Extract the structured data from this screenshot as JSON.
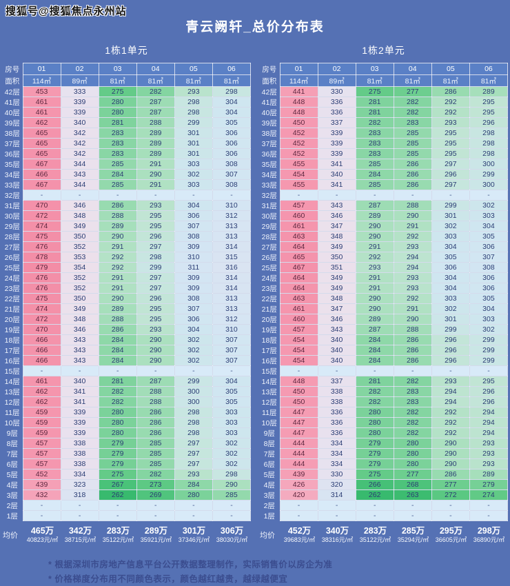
{
  "watermark": "搜狐号@搜狐焦点永州站",
  "title": "青云阙轩_总价分布表",
  "labels": {
    "room": "房号",
    "area": "面积",
    "avg": "均价",
    "empty_cell": "-"
  },
  "notes": [
    "* 根据深圳市房地产信息平台公开数据整理制作，实际销售价以房企为准",
    "* 价格梯度分布用不同颜色表示，颜色越红越贵，越绿越便宜"
  ],
  "colors": {
    "page_bg": "#5571b4",
    "header_cell_bg": "#5a80c6",
    "empty_cell_bg": "#d8eaf8",
    "empty_cell_text": "#44598f",
    "value_text": "#2b3d74",
    "pink_value_text": "#5e2840",
    "gradient_note": "green=cheap, pink=expensive",
    "gradient_stops": [
      [
        262,
        "#38ba6e"
      ],
      [
        268,
        "#4dc37b"
      ],
      [
        275,
        "#64cb88"
      ],
      [
        281,
        "#7fd39d"
      ],
      [
        286,
        "#98dbb0"
      ],
      [
        291,
        "#b0e1c3"
      ],
      [
        295,
        "#c1e5d4"
      ],
      [
        299,
        "#cae6e5"
      ],
      [
        304,
        "#cfe6f0"
      ],
      [
        310,
        "#d4e5f3"
      ],
      [
        317,
        "#dbe4f2"
      ],
      [
        327,
        "#e5e2f0"
      ],
      [
        342,
        "#eae1ed"
      ],
      [
        356,
        "#ece0eb"
      ],
      [
        416,
        "#f4aec1"
      ],
      [
        432,
        "#f5a3b9"
      ],
      [
        456,
        "#f597af"
      ],
      [
        480,
        "#f38da6"
      ]
    ]
  },
  "chart_data": [
    {
      "type": "heatmap",
      "title": "1栋1单元",
      "unit_of_values": "万 (total price)",
      "columns": [
        "01",
        "02",
        "03",
        "04",
        "05",
        "06"
      ],
      "areas": [
        "114㎡",
        "89㎡",
        "81㎡",
        "81㎡",
        "81㎡",
        "81㎡"
      ],
      "rows": [
        {
          "floor": "42层",
          "values": [
            453,
            333,
            275,
            282,
            293,
            298
          ]
        },
        {
          "floor": "41层",
          "values": [
            461,
            339,
            280,
            287,
            298,
            304
          ]
        },
        {
          "floor": "40层",
          "values": [
            461,
            339,
            280,
            287,
            298,
            304
          ]
        },
        {
          "floor": "39层",
          "values": [
            462,
            340,
            281,
            288,
            299,
            305
          ]
        },
        {
          "floor": "38层",
          "values": [
            465,
            342,
            283,
            289,
            301,
            306
          ]
        },
        {
          "floor": "37层",
          "values": [
            465,
            342,
            283,
            289,
            301,
            306
          ]
        },
        {
          "floor": "36层",
          "values": [
            465,
            342,
            283,
            289,
            301,
            306
          ]
        },
        {
          "floor": "35层",
          "values": [
            467,
            344,
            285,
            291,
            303,
            308
          ]
        },
        {
          "floor": "34层",
          "values": [
            466,
            343,
            284,
            290,
            302,
            307
          ]
        },
        {
          "floor": "33层",
          "values": [
            467,
            344,
            285,
            291,
            303,
            308
          ]
        },
        {
          "floor": "32层",
          "values": [
            null,
            null,
            null,
            null,
            null,
            null
          ]
        },
        {
          "floor": "31层",
          "values": [
            470,
            346,
            286,
            293,
            304,
            310
          ]
        },
        {
          "floor": "30层",
          "values": [
            472,
            348,
            288,
            295,
            306,
            312
          ]
        },
        {
          "floor": "29层",
          "values": [
            474,
            349,
            289,
            295,
            307,
            313
          ]
        },
        {
          "floor": "28层",
          "values": [
            475,
            350,
            290,
            296,
            308,
            313
          ]
        },
        {
          "floor": "27层",
          "values": [
            476,
            352,
            291,
            297,
            309,
            314
          ]
        },
        {
          "floor": "26层",
          "values": [
            478,
            353,
            292,
            298,
            310,
            315
          ]
        },
        {
          "floor": "25层",
          "values": [
            479,
            354,
            292,
            299,
            311,
            316
          ]
        },
        {
          "floor": "24层",
          "values": [
            476,
            352,
            291,
            297,
            309,
            314
          ]
        },
        {
          "floor": "23层",
          "values": [
            476,
            352,
            291,
            297,
            309,
            314
          ]
        },
        {
          "floor": "22层",
          "values": [
            475,
            350,
            290,
            296,
            308,
            313
          ]
        },
        {
          "floor": "21层",
          "values": [
            474,
            349,
            289,
            295,
            307,
            313
          ]
        },
        {
          "floor": "20层",
          "values": [
            472,
            348,
            288,
            295,
            306,
            312
          ]
        },
        {
          "floor": "19层",
          "values": [
            470,
            346,
            286,
            293,
            304,
            310
          ]
        },
        {
          "floor": "18层",
          "values": [
            466,
            343,
            284,
            290,
            302,
            307
          ]
        },
        {
          "floor": "17层",
          "values": [
            466,
            343,
            284,
            290,
            302,
            307
          ]
        },
        {
          "floor": "16层",
          "values": [
            466,
            343,
            284,
            290,
            302,
            307
          ]
        },
        {
          "floor": "15层",
          "values": [
            null,
            null,
            null,
            null,
            null,
            null
          ]
        },
        {
          "floor": "14层",
          "values": [
            461,
            340,
            281,
            287,
            299,
            304
          ]
        },
        {
          "floor": "13层",
          "values": [
            462,
            341,
            282,
            288,
            300,
            305
          ]
        },
        {
          "floor": "12层",
          "values": [
            462,
            341,
            282,
            288,
            300,
            305
          ]
        },
        {
          "floor": "11层",
          "values": [
            459,
            339,
            280,
            286,
            298,
            303
          ]
        },
        {
          "floor": "10层",
          "values": [
            459,
            339,
            280,
            286,
            298,
            303
          ]
        },
        {
          "floor": "9层",
          "values": [
            459,
            339,
            280,
            286,
            298,
            303
          ]
        },
        {
          "floor": "8层",
          "values": [
            457,
            338,
            279,
            285,
            297,
            302
          ]
        },
        {
          "floor": "7层",
          "values": [
            457,
            338,
            279,
            285,
            297,
            302
          ]
        },
        {
          "floor": "6层",
          "values": [
            457,
            338,
            279,
            285,
            297,
            302
          ]
        },
        {
          "floor": "5层",
          "values": [
            452,
            334,
            275,
            282,
            293,
            298
          ]
        },
        {
          "floor": "4层",
          "values": [
            439,
            323,
            267,
            273,
            284,
            290
          ]
        },
        {
          "floor": "3层",
          "values": [
            432,
            318,
            262,
            269,
            280,
            285
          ]
        },
        {
          "floor": "2层",
          "values": [
            null,
            null,
            null,
            null,
            null,
            null
          ]
        },
        {
          "floor": "1层",
          "values": [
            null,
            null,
            null,
            null,
            null,
            null
          ]
        }
      ],
      "avg_wan": [
        "465万",
        "342万",
        "283万",
        "289万",
        "301万",
        "306万"
      ],
      "avg_sqm": [
        "40823元/㎡",
        "38715元/㎡",
        "35122元/㎡",
        "35921元/㎡",
        "37346元/㎡",
        "38030元/㎡"
      ]
    },
    {
      "type": "heatmap",
      "title": "1栋2单元",
      "unit_of_values": "万 (total price)",
      "columns": [
        "01",
        "02",
        "03",
        "04",
        "05",
        "06"
      ],
      "areas": [
        "114㎡",
        "89㎡",
        "81㎡",
        "81㎡",
        "81㎡",
        "81㎡"
      ],
      "rows": [
        {
          "floor": "42层",
          "values": [
            441,
            330,
            275,
            277,
            286,
            289
          ]
        },
        {
          "floor": "41层",
          "values": [
            448,
            336,
            281,
            282,
            292,
            295
          ]
        },
        {
          "floor": "40层",
          "values": [
            448,
            336,
            281,
            282,
            292,
            295
          ]
        },
        {
          "floor": "39层",
          "values": [
            450,
            337,
            282,
            283,
            293,
            296
          ]
        },
        {
          "floor": "38层",
          "values": [
            452,
            339,
            283,
            285,
            295,
            298
          ]
        },
        {
          "floor": "37层",
          "values": [
            452,
            339,
            283,
            285,
            295,
            298
          ]
        },
        {
          "floor": "36层",
          "values": [
            452,
            339,
            283,
            285,
            295,
            298
          ]
        },
        {
          "floor": "35层",
          "values": [
            455,
            341,
            285,
            286,
            297,
            300
          ]
        },
        {
          "floor": "34层",
          "values": [
            454,
            340,
            284,
            286,
            296,
            299
          ]
        },
        {
          "floor": "33层",
          "values": [
            455,
            341,
            285,
            286,
            297,
            300
          ]
        },
        {
          "floor": "32层",
          "values": [
            null,
            null,
            null,
            null,
            null,
            null
          ]
        },
        {
          "floor": "31层",
          "values": [
            457,
            343,
            287,
            288,
            299,
            302
          ]
        },
        {
          "floor": "30层",
          "values": [
            460,
            346,
            289,
            290,
            301,
            303
          ]
        },
        {
          "floor": "29层",
          "values": [
            461,
            347,
            290,
            291,
            302,
            304
          ]
        },
        {
          "floor": "28层",
          "values": [
            463,
            348,
            290,
            292,
            303,
            305
          ]
        },
        {
          "floor": "27层",
          "values": [
            464,
            349,
            291,
            293,
            304,
            306
          ]
        },
        {
          "floor": "26层",
          "values": [
            465,
            350,
            292,
            294,
            305,
            307
          ]
        },
        {
          "floor": "25层",
          "values": [
            467,
            351,
            293,
            294,
            306,
            308
          ]
        },
        {
          "floor": "24层",
          "values": [
            464,
            349,
            291,
            293,
            304,
            306
          ]
        },
        {
          "floor": "23层",
          "values": [
            464,
            349,
            291,
            293,
            304,
            306
          ]
        },
        {
          "floor": "22层",
          "values": [
            463,
            348,
            290,
            292,
            303,
            305
          ]
        },
        {
          "floor": "21层",
          "values": [
            461,
            347,
            290,
            291,
            302,
            304
          ]
        },
        {
          "floor": "20层",
          "values": [
            460,
            346,
            289,
            290,
            301,
            303
          ]
        },
        {
          "floor": "19层",
          "values": [
            457,
            343,
            287,
            288,
            299,
            302
          ]
        },
        {
          "floor": "18层",
          "values": [
            454,
            340,
            284,
            286,
            296,
            299
          ]
        },
        {
          "floor": "17层",
          "values": [
            454,
            340,
            284,
            286,
            296,
            299
          ]
        },
        {
          "floor": "16层",
          "values": [
            454,
            340,
            284,
            286,
            296,
            299
          ]
        },
        {
          "floor": "15层",
          "values": [
            null,
            null,
            null,
            null,
            null,
            null
          ]
        },
        {
          "floor": "14层",
          "values": [
            448,
            337,
            281,
            282,
            293,
            295
          ]
        },
        {
          "floor": "13层",
          "values": [
            450,
            338,
            282,
            283,
            294,
            296
          ]
        },
        {
          "floor": "12层",
          "values": [
            450,
            338,
            282,
            283,
            294,
            296
          ]
        },
        {
          "floor": "11层",
          "values": [
            447,
            336,
            280,
            282,
            292,
            294
          ]
        },
        {
          "floor": "10层",
          "values": [
            447,
            336,
            280,
            282,
            292,
            294
          ]
        },
        {
          "floor": "9层",
          "values": [
            447,
            336,
            280,
            282,
            292,
            294
          ]
        },
        {
          "floor": "8层",
          "values": [
            444,
            334,
            279,
            280,
            290,
            293
          ]
        },
        {
          "floor": "7层",
          "values": [
            444,
            334,
            279,
            280,
            290,
            293
          ]
        },
        {
          "floor": "6层",
          "values": [
            444,
            334,
            279,
            280,
            290,
            293
          ]
        },
        {
          "floor": "5层",
          "values": [
            439,
            330,
            275,
            277,
            286,
            289
          ]
        },
        {
          "floor": "4层",
          "values": [
            426,
            320,
            266,
            268,
            277,
            279
          ]
        },
        {
          "floor": "3层",
          "values": [
            420,
            314,
            262,
            263,
            272,
            274
          ]
        },
        {
          "floor": "2层",
          "values": [
            null,
            null,
            null,
            null,
            null,
            null
          ]
        },
        {
          "floor": "1层",
          "values": [
            null,
            null,
            null,
            null,
            null,
            null
          ]
        }
      ],
      "avg_wan": [
        "452万",
        "340万",
        "283万",
        "285万",
        "295万",
        "298万"
      ],
      "avg_sqm": [
        "39683元/㎡",
        "38316元/㎡",
        "35122元/㎡",
        "35294元/㎡",
        "36605元/㎡",
        "36890元/㎡"
      ]
    }
  ]
}
